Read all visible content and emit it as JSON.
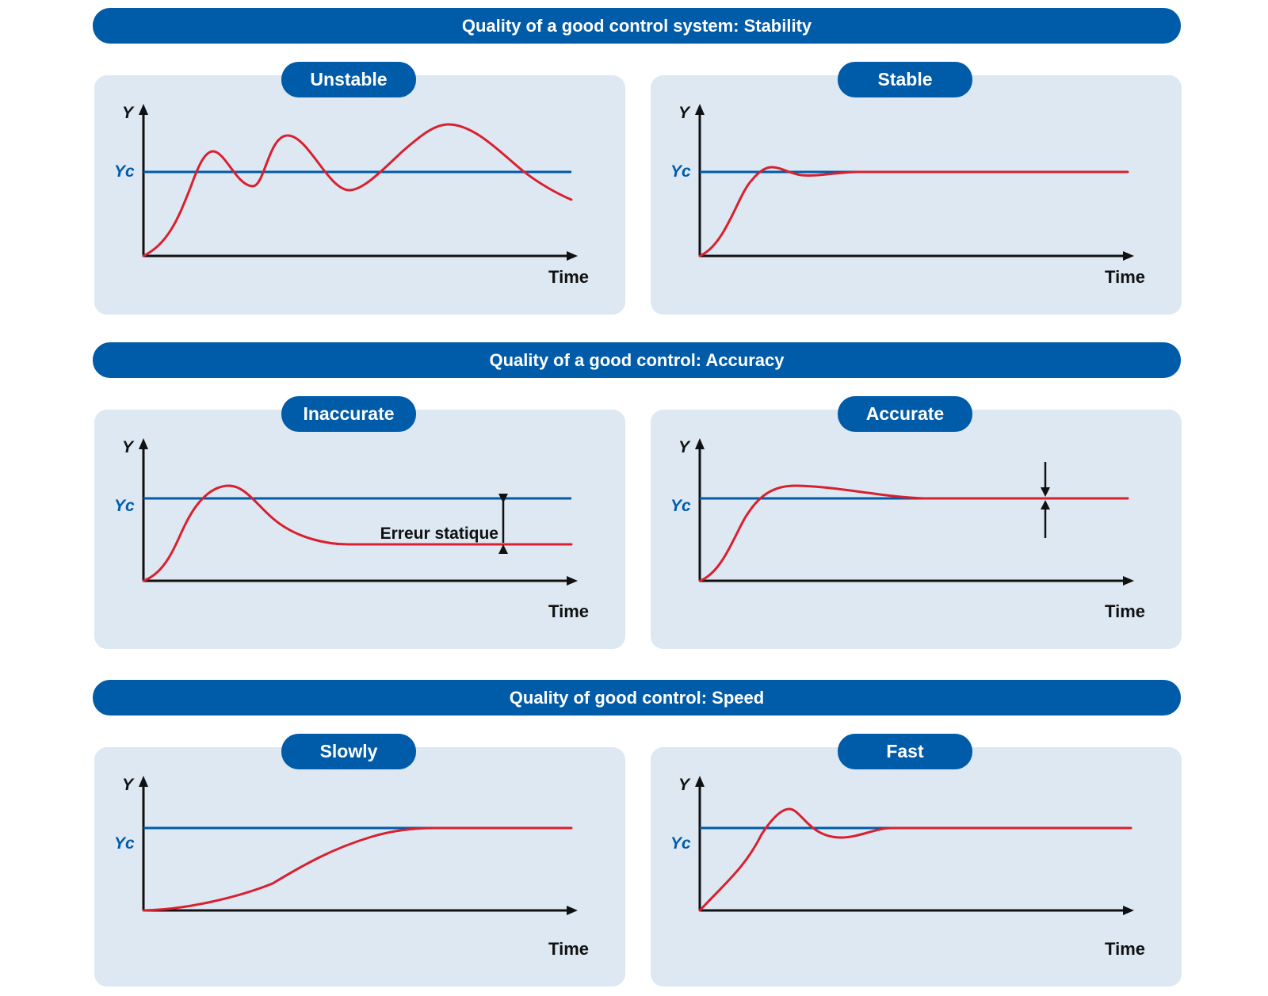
{
  "colors": {
    "accent": "#005ba9",
    "panel": "#dde8f3",
    "response": "#d9202e",
    "axis": "#111111"
  },
  "sections": [
    {
      "title": "Quality of a good control system: Stability",
      "charts": [
        {
          "label": "Unstable",
          "y_label": "Y",
          "setpoint_label": "Yc",
          "x_label": "Time",
          "curve": "unstable"
        },
        {
          "label": "Stable",
          "y_label": "Y",
          "setpoint_label": "Yc",
          "x_label": "Time",
          "curve": "stable"
        }
      ]
    },
    {
      "title": "Quality of a good control: Accuracy",
      "charts": [
        {
          "label": "Inaccurate",
          "y_label": "Y",
          "setpoint_label": "Yc",
          "x_label": "Time",
          "curve": "inaccurate",
          "annotation": "Erreur statique"
        },
        {
          "label": "Accurate",
          "y_label": "Y",
          "setpoint_label": "Yc",
          "x_label": "Time",
          "curve": "accurate"
        }
      ]
    },
    {
      "title": "Quality of good control: Speed",
      "charts": [
        {
          "label": "Slowly",
          "y_label": "Y",
          "setpoint_label": "Yc",
          "x_label": "Time",
          "curve": "slow"
        },
        {
          "label": "Fast",
          "y_label": "Y",
          "setpoint_label": "Yc",
          "x_label": "Time",
          "curve": "fast"
        }
      ]
    }
  ]
}
